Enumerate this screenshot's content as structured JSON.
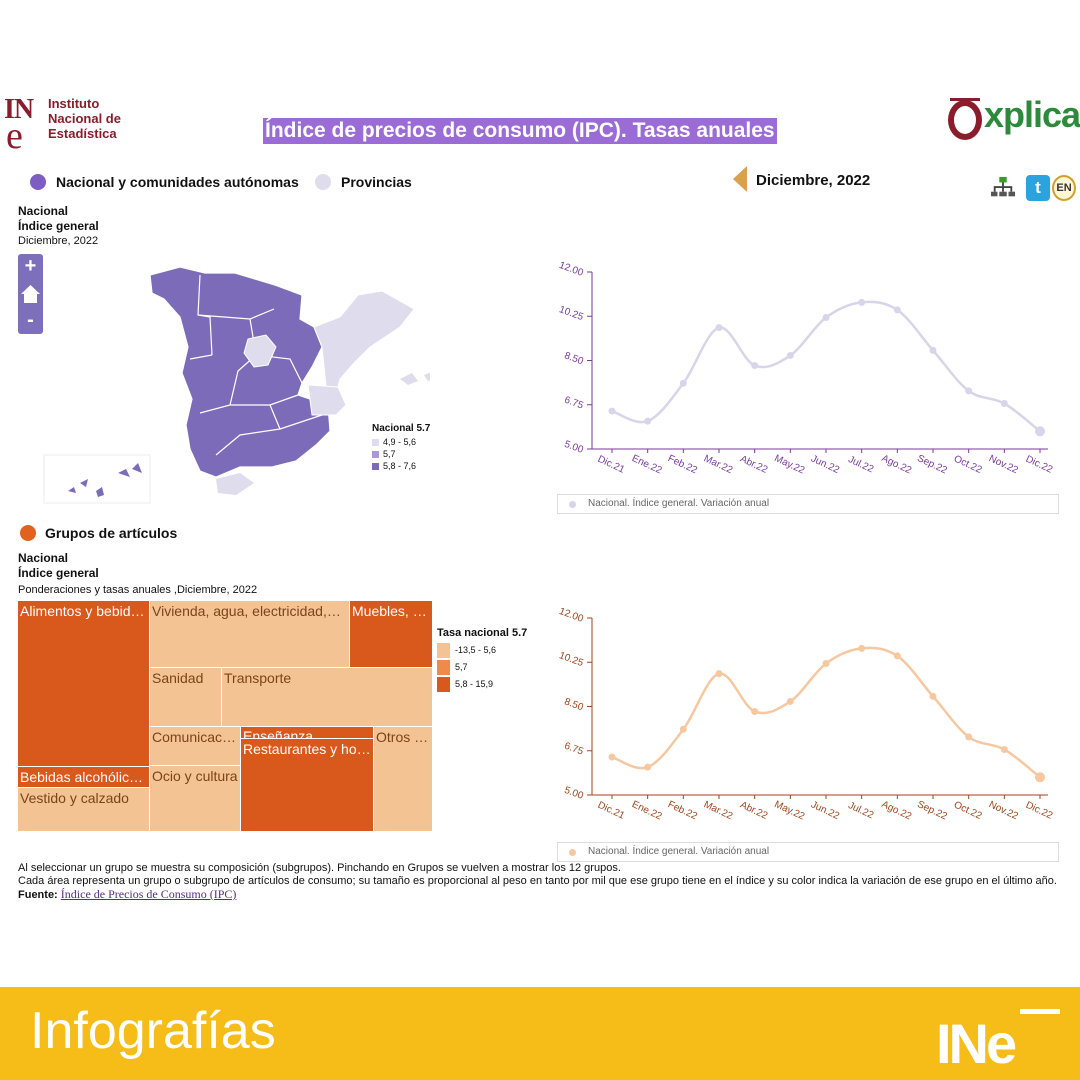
{
  "header": {
    "org_mark": "IN",
    "org_mark_e": "e",
    "org_name_lines": [
      "Instituto",
      "Nacional de",
      "Estadística"
    ],
    "title": "Índice de precios de consumo (IPC). Tasas anuales",
    "brand": "xplica",
    "brand_e": "e"
  },
  "toggles": {
    "option1": "Nacional y comunidades autónomas",
    "option2": "Provincias",
    "option1_color": "#7d5cc4",
    "option2_color": "#dedced"
  },
  "period": {
    "label": "Diciembre, 2022"
  },
  "tools": {
    "twitter": "t",
    "language": "EN"
  },
  "map_block": {
    "title1": "Nacional",
    "title2": "Índice general",
    "subtitle": "Diciembre, 2022",
    "zoom_in": "+",
    "zoom_out": "-",
    "legend": {
      "title": "Nacional 5.7",
      "items": [
        {
          "label": "4,9 - 5,6",
          "color": "#dedced"
        },
        {
          "label": "5,7",
          "color": "#a99ad6"
        },
        {
          "label": "5,8 - 7,6",
          "color": "#7c6bb8"
        }
      ]
    }
  },
  "chart_data": [
    {
      "type": "line",
      "categories": [
        "Dic.21",
        "Ene.22",
        "Feb.22",
        "Mar.22",
        "Abr.22",
        "May.22",
        "Jun.22",
        "Jul.22",
        "Ago.22",
        "Sep.22",
        "Oct.22",
        "Nov.22",
        "Dic.22"
      ],
      "series": [
        {
          "name": "Nacional. Índice general. Variación anual",
          "values": [
            6.5,
            6.1,
            7.6,
            9.8,
            8.3,
            8.7,
            10.2,
            10.8,
            10.5,
            8.9,
            7.3,
            6.8,
            5.7
          ],
          "color": "#d8d4ea"
        }
      ],
      "yticks": [
        "12.00",
        "10.25",
        "8.50",
        "6.75",
        "5.00"
      ],
      "ylim": [
        5,
        12
      ],
      "tick_color": "#7a3aa0",
      "axis_color": "#7a3aa0"
    },
    {
      "type": "line",
      "categories": [
        "Dic.21",
        "Ene.22",
        "Feb.22",
        "Mar.22",
        "Abr.22",
        "May.22",
        "Jun.22",
        "Jul.22",
        "Ago.22",
        "Sep.22",
        "Oct.22",
        "Nov.22",
        "Dic.22"
      ],
      "series": [
        {
          "name": "Nacional. Índice general. Variación anual",
          "values": [
            6.5,
            6.1,
            7.6,
            9.8,
            8.3,
            8.7,
            10.2,
            10.8,
            10.5,
            8.9,
            7.3,
            6.8,
            5.7
          ],
          "color": "#f7c8a0"
        }
      ],
      "yticks": [
        "12.00",
        "10.25",
        "8.50",
        "6.75",
        "5.00"
      ],
      "ylim": [
        5,
        12
      ],
      "tick_color": "#a0451b",
      "axis_color": "#a0451b"
    }
  ],
  "groups_toggle": {
    "label": "Grupos de artículos",
    "color": "#e0621e"
  },
  "treemap_block": {
    "title1": "Nacional",
    "title2": "Índice general",
    "subtitle": "Ponderaciones y tasas anuales ,Diciembre, 2022",
    "cells": [
      {
        "label": "Alimentos y bebid…",
        "shade": "dark"
      },
      {
        "label": "Vivienda, agua, electricidad,…",
        "shade": "light"
      },
      {
        "label": "Muebles, …",
        "shade": "dark"
      },
      {
        "label": "Sanidad",
        "shade": "light"
      },
      {
        "label": "Transporte",
        "shade": "light"
      },
      {
        "label": "Comunicac…",
        "shade": "light"
      },
      {
        "label": "Enseñanza",
        "shade": "dark"
      },
      {
        "label": "Restaurantes y ho…",
        "shade": "dark"
      },
      {
        "label": "Otros …",
        "shade": "light"
      },
      {
        "label": "Bebidas alcohólic…",
        "shade": "dark"
      },
      {
        "label": "Ocio y cultura",
        "shade": "light"
      },
      {
        "label": "Vestido y calzado",
        "shade": "light"
      }
    ],
    "legend": {
      "title": "Tasa nacional 5.7",
      "items": [
        {
          "label": "-13,5 - 5,6",
          "color": "#f3c394"
        },
        {
          "label": "5,7",
          "color": "#ef8a4a"
        },
        {
          "label": "5,8 - 15,9",
          "color": "#d9581b"
        }
      ]
    }
  },
  "notes": {
    "line1": "Al seleccionar un grupo se muestra su composición (subgrupos). Pinchando en Grupos se vuelven a mostrar los 12 grupos.",
    "line2": "Cada área representa un grupo o subgrupo de artículos de consumo; su tamaño es proporcional al peso en tanto por mil que ese grupo tiene en el índice y su color indica la variación de ese grupo en el último año.",
    "source_label": "Fuente:",
    "source_link": "Índice de Precios de Consumo (IPC)"
  },
  "footer": {
    "label": "Infografías",
    "logo": "INe"
  }
}
